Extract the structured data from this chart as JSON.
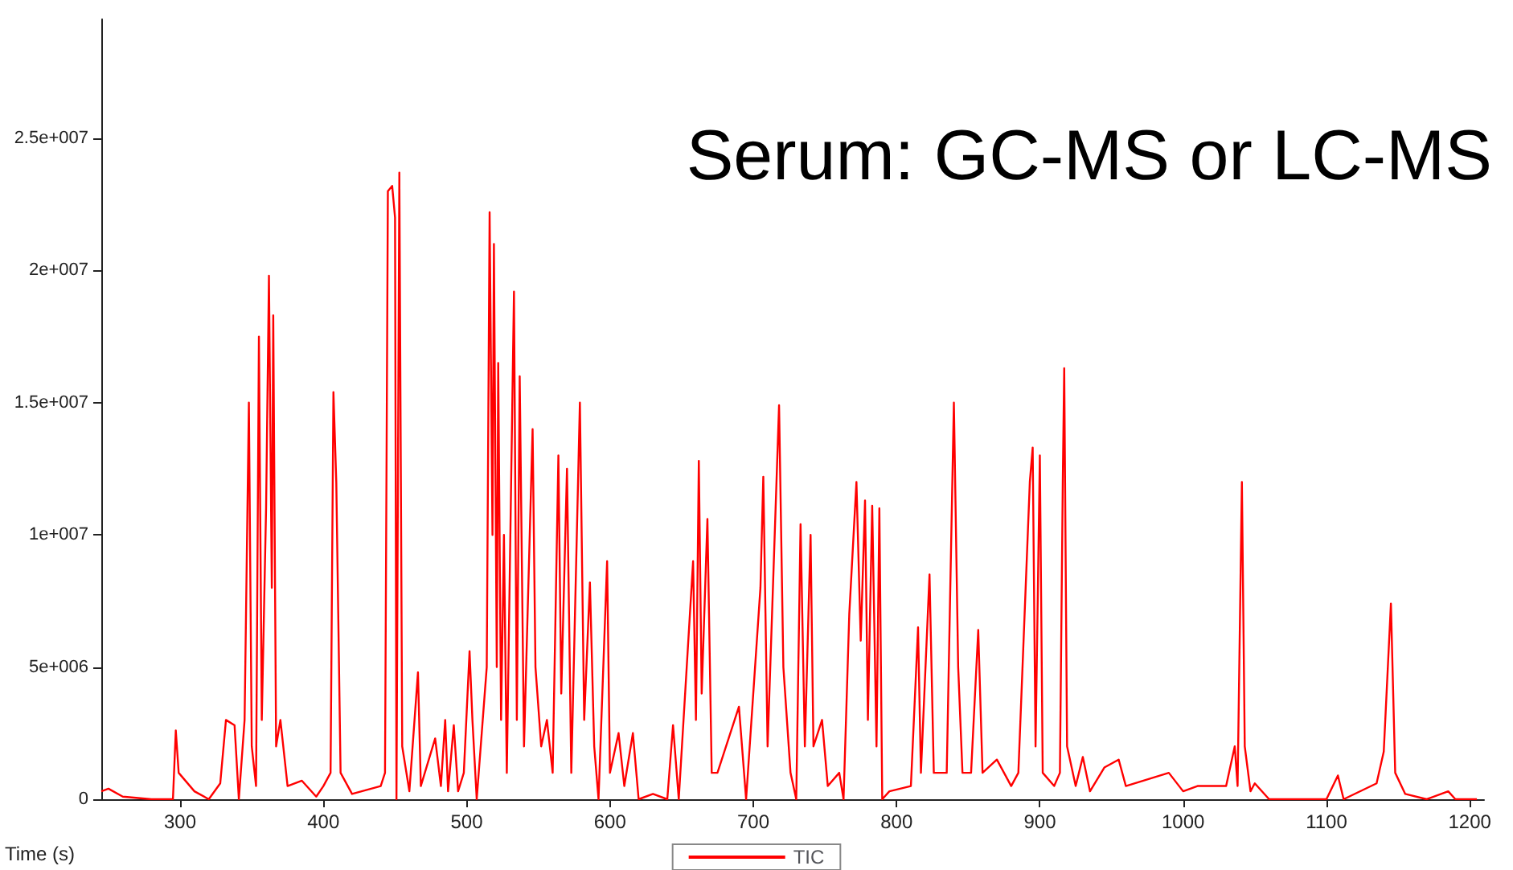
{
  "chart_data": {
    "type": "line",
    "title": "Serum: GC-MS or LC-MS",
    "xlabel": "Time (s)",
    "xlim": [
      245,
      1210
    ],
    "xticks": [
      300,
      400,
      500,
      600,
      700,
      800,
      900,
      1000,
      1100,
      1200
    ],
    "ylim": [
      0,
      29500000
    ],
    "yticks": [
      {
        "value": 0,
        "label": "0"
      },
      {
        "value": 5000000,
        "label": "5e+006"
      },
      {
        "value": 10000000,
        "label": "1e+007"
      },
      {
        "value": 15000000,
        "label": "1.5e+007"
      },
      {
        "value": 20000000,
        "label": "2e+007"
      },
      {
        "value": 25000000,
        "label": "2.5e+007"
      }
    ],
    "grid": false,
    "legend": "bottom",
    "marker": "none",
    "series": [
      {
        "name": "TIC",
        "color": "#ff0000",
        "x": [
          245,
          250,
          260,
          280,
          295,
          297,
          299,
          310,
          320,
          328,
          332,
          338,
          341,
          345,
          348,
          350,
          353,
          355,
          357,
          360,
          362,
          364,
          365,
          367,
          370,
          375,
          385,
          395,
          400,
          405,
          407,
          409,
          412,
          420,
          440,
          443,
          445,
          448,
          450,
          451,
          453,
          455,
          460,
          466,
          468,
          478,
          482,
          485,
          487,
          491,
          494,
          498,
          502,
          504,
          507,
          514,
          516,
          518,
          519,
          521,
          522,
          524,
          526,
          528,
          533,
          535,
          537,
          540,
          546,
          548,
          552,
          556,
          560,
          564,
          566,
          570,
          573,
          576,
          579,
          582,
          586,
          589,
          592,
          598,
          600,
          606,
          610,
          616,
          620,
          630,
          640,
          644,
          648,
          658,
          660,
          662,
          664,
          668,
          671,
          675,
          690,
          695,
          705,
          707,
          710,
          718,
          721,
          726,
          730,
          733,
          736,
          740,
          742,
          748,
          752,
          760,
          763,
          767,
          772,
          775,
          778,
          780,
          783,
          786,
          788,
          790,
          795,
          810,
          815,
          817,
          823,
          826,
          835,
          840,
          843,
          846,
          852,
          857,
          860,
          870,
          880,
          885,
          893,
          895,
          897,
          900,
          902,
          910,
          914,
          916,
          917,
          919,
          925,
          930,
          935,
          945,
          955,
          960,
          990,
          1000,
          1010,
          1030,
          1036,
          1038,
          1041,
          1043,
          1047,
          1050,
          1060,
          1100,
          1108,
          1112,
          1135,
          1140,
          1145,
          1148,
          1155,
          1170,
          1185,
          1190,
          1205
        ],
        "values": [
          300000,
          400000,
          100000,
          0,
          0,
          2600000,
          1000000,
          300000,
          0,
          600000,
          3000000,
          2800000,
          0,
          3000000,
          15000000,
          2000000,
          500000,
          17500000,
          3000000,
          11000000,
          19800000,
          8000000,
          18300000,
          2000000,
          3000000,
          500000,
          700000,
          100000,
          500000,
          1000000,
          15400000,
          12000000,
          1000000,
          200000,
          500000,
          1000000,
          23000000,
          23200000,
          22000000,
          0,
          23700000,
          2000000,
          300000,
          4800000,
          500000,
          2300000,
          500000,
          3000000,
          300000,
          2800000,
          300000,
          1000000,
          5600000,
          3000000,
          0,
          5000000,
          22200000,
          10000000,
          21000000,
          5000000,
          16500000,
          3000000,
          10000000,
          1000000,
          19200000,
          3000000,
          16000000,
          2000000,
          14000000,
          5000000,
          2000000,
          3000000,
          1000000,
          13000000,
          4000000,
          12500000,
          1000000,
          8000000,
          15000000,
          3000000,
          8200000,
          2000000,
          0,
          9000000,
          1000000,
          2500000,
          500000,
          2500000,
          0,
          200000,
          0,
          2800000,
          0,
          9000000,
          3000000,
          12800000,
          4000000,
          10600000,
          1000000,
          1000000,
          3500000,
          0,
          8000000,
          12200000,
          2000000,
          14900000,
          5000000,
          1000000,
          0,
          10400000,
          2000000,
          10000000,
          2000000,
          3000000,
          500000,
          1000000,
          0,
          7000000,
          12000000,
          6000000,
          11300000,
          3000000,
          11100000,
          2000000,
          11000000,
          0,
          300000,
          500000,
          6500000,
          1000000,
          8500000,
          1000000,
          1000000,
          15000000,
          5000000,
          1000000,
          1000000,
          6400000,
          1000000,
          1500000,
          500000,
          1000000,
          12000000,
          13300000,
          2000000,
          13000000,
          1000000,
          500000,
          1000000,
          12000000,
          16300000,
          2000000,
          500000,
          1600000,
          300000,
          1200000,
          1500000,
          500000,
          1000000,
          300000,
          500000,
          500000,
          2000000,
          500000,
          12000000,
          2000000,
          300000,
          600000,
          0,
          0,
          900000,
          0,
          600000,
          1800000,
          7400000,
          1000000,
          200000,
          0,
          300000,
          0,
          0
        ]
      }
    ]
  }
}
